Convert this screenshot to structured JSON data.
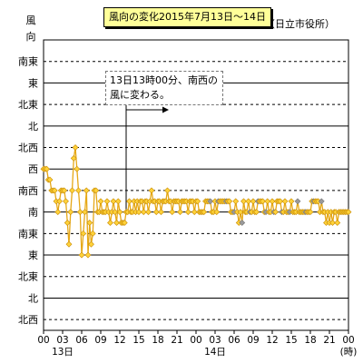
{
  "chart_data": {
    "type": "line",
    "title": "風向の変化2015年7月13日～14日",
    "source": "（日立市役所）",
    "ylabel": "風向",
    "y_categories": [
      "北西",
      "北",
      "北東",
      "東",
      "南東",
      "南",
      "南西",
      "西",
      "北西",
      "北",
      "北東",
      "東",
      "南東"
    ],
    "x_tick_labels": [
      "00",
      "03",
      "06",
      "09",
      "12",
      "15",
      "18",
      "21",
      "00",
      "03",
      "06",
      "09",
      "12",
      "15",
      "18",
      "21",
      "00"
    ],
    "x_day_labels": [
      "13日",
      "14日"
    ],
    "x_unit": "(時)",
    "xlim": [
      0,
      48
    ],
    "annotation": "13日13時00分、南西の風に変わる。",
    "annotation_x": 13,
    "series": [
      {
        "values": [
          [
            0,
            7
          ],
          [
            0.25,
            7
          ],
          [
            0.5,
            7
          ],
          [
            0.75,
            6.5
          ],
          [
            1,
            6.5
          ],
          [
            1.25,
            6
          ],
          [
            1.5,
            6
          ],
          [
            1.75,
            6
          ],
          [
            2,
            5.5
          ],
          [
            2.25,
            5
          ],
          [
            2.5,
            5.5
          ],
          [
            2.75,
            6
          ],
          [
            3,
            6
          ],
          [
            3.25,
            6
          ],
          [
            3.5,
            5.5
          ],
          [
            3.75,
            4.5
          ],
          [
            4,
            3.5
          ],
          [
            4.25,
            5
          ],
          [
            4.5,
            6
          ],
          [
            4.75,
            7.5
          ],
          [
            5,
            8
          ],
          [
            5.25,
            7
          ],
          [
            5.5,
            6
          ],
          [
            5.75,
            5
          ],
          [
            6,
            3
          ],
          [
            6.25,
            4
          ],
          [
            6.5,
            5
          ],
          [
            6.75,
            6
          ],
          [
            7,
            3
          ],
          [
            7.25,
            4.5
          ],
          [
            7.5,
            3.5
          ],
          [
            7.75,
            4
          ],
          [
            8,
            6
          ],
          [
            8.25,
            6
          ],
          [
            8.5,
            5
          ],
          [
            8.75,
            5
          ],
          [
            9,
            5.5
          ],
          [
            9.25,
            5
          ],
          [
            9.5,
            5
          ],
          [
            9.75,
            5
          ],
          [
            10,
            5.5
          ],
          [
            10.25,
            5
          ],
          [
            10.5,
            4.5
          ],
          [
            10.75,
            5
          ],
          [
            11,
            5.5
          ],
          [
            11.25,
            5
          ],
          [
            11.5,
            4.5
          ],
          [
            11.75,
            5.5
          ],
          [
            12,
            5
          ],
          [
            12.25,
            4.5
          ],
          [
            12.5,
            4.5
          ],
          [
            12.75,
            4.5
          ],
          [
            13,
            5
          ],
          [
            13.25,
            5
          ],
          [
            13.5,
            5.5
          ],
          [
            13.75,
            5
          ],
          [
            14,
            5
          ],
          [
            14.25,
            5.5
          ],
          [
            14.5,
            5
          ],
          [
            14.75,
            5.5
          ],
          [
            15,
            5
          ],
          [
            15.25,
            5.5
          ],
          [
            15.5,
            5.5
          ],
          [
            15.75,
            5
          ],
          [
            16,
            5.5
          ],
          [
            16.25,
            5.5
          ],
          [
            16.5,
            5
          ],
          [
            16.75,
            5.5
          ],
          [
            17,
            6
          ],
          [
            17.25,
            5.5
          ],
          [
            17.5,
            5.5
          ],
          [
            17.75,
            5
          ],
          [
            18,
            5.5
          ],
          [
            18.25,
            5.5
          ],
          [
            18.5,
            5
          ],
          [
            18.75,
            5.5
          ],
          [
            19,
            5.5
          ],
          [
            19.25,
            5.5
          ],
          [
            19.5,
            6
          ],
          [
            19.75,
            5.5
          ],
          [
            20,
            5.5
          ],
          [
            20.25,
            5
          ],
          [
            20.5,
            5.5
          ],
          [
            20.75,
            5.5
          ],
          [
            21,
            5.5
          ],
          [
            21.25,
            5.5
          ],
          [
            21.5,
            5
          ],
          [
            21.75,
            5.5
          ],
          [
            22,
            5.5
          ],
          [
            22.25,
            5.5
          ],
          [
            22.5,
            5.5
          ],
          [
            22.75,
            5
          ],
          [
            23,
            5.5
          ],
          [
            23.25,
            5.5
          ],
          [
            23.5,
            5.5
          ],
          [
            23.75,
            5
          ],
          [
            24,
            5.5
          ],
          [
            24.25,
            5.5
          ],
          [
            24.5,
            5
          ],
          [
            24.75,
            5
          ],
          [
            25,
            5
          ],
          [
            25.25,
            5
          ],
          [
            25.5,
            5.5
          ],
          [
            25.75,
            5.5
          ],
          [
            26,
            5.5
          ],
          [
            26.25,
            5.5
          ],
          [
            26.5,
            5
          ],
          [
            26.75,
            5
          ],
          [
            27,
            5.5
          ],
          [
            27.25,
            5
          ],
          [
            27.5,
            5.5
          ],
          [
            27.75,
            5.5
          ],
          [
            28,
            5.5
          ],
          [
            28.25,
            5.5
          ],
          [
            28.5,
            5.5
          ],
          [
            28.75,
            5.5
          ],
          [
            29,
            5.5
          ],
          [
            29.25,
            5.5
          ],
          [
            29.5,
            5
          ],
          [
            29.75,
            5
          ],
          [
            30,
            5
          ],
          [
            30.25,
            5.5
          ],
          [
            30.5,
            5
          ],
          [
            30.75,
            4.5
          ],
          [
            31,
            5
          ],
          [
            31.25,
            4.5
          ],
          [
            31.5,
            5.5
          ],
          [
            31.75,
            5
          ],
          [
            32,
            5
          ],
          [
            32.25,
            5.5
          ],
          [
            32.5,
            5
          ],
          [
            32.75,
            5
          ],
          [
            33,
            5.5
          ],
          [
            33.25,
            5
          ],
          [
            33.5,
            5
          ],
          [
            33.75,
            5.5
          ],
          [
            34,
            5.5
          ],
          [
            34.25,
            5.5
          ],
          [
            34.5,
            5.5
          ],
          [
            34.75,
            5
          ],
          [
            35,
            5
          ],
          [
            35.25,
            5.5
          ],
          [
            35.5,
            5
          ],
          [
            35.75,
            5
          ],
          [
            36,
            5.5
          ],
          [
            36.25,
            5
          ],
          [
            36.5,
            5
          ],
          [
            36.75,
            5.5
          ],
          [
            37,
            5.5
          ],
          [
            37.25,
            5.5
          ],
          [
            37.5,
            5
          ],
          [
            37.75,
            5
          ],
          [
            38,
            5.5
          ],
          [
            38.25,
            5
          ],
          [
            38.5,
            5
          ],
          [
            38.75,
            5
          ],
          [
            39,
            5.5
          ],
          [
            39.25,
            5
          ],
          [
            39.5,
            5
          ],
          [
            39.75,
            5
          ],
          [
            40,
            5.5
          ],
          [
            40.25,
            5
          ],
          [
            40.5,
            5
          ],
          [
            40.75,
            5
          ],
          [
            41,
            5
          ],
          [
            41.25,
            5
          ],
          [
            41.5,
            5
          ],
          [
            41.75,
            5
          ],
          [
            42,
            5
          ],
          [
            42.25,
            5.5
          ],
          [
            42.5,
            5.5
          ],
          [
            42.75,
            5.5
          ],
          [
            43,
            5.5
          ],
          [
            43.25,
            5.5
          ],
          [
            43.5,
            5
          ],
          [
            43.75,
            5.5
          ],
          [
            44,
            5
          ],
          [
            44.25,
            5
          ],
          [
            44.5,
            4.5
          ],
          [
            44.75,
            5
          ],
          [
            45,
            4.5
          ],
          [
            45.25,
            5
          ],
          [
            45.5,
            4.5
          ],
          [
            45.75,
            5
          ],
          [
            46,
            5
          ],
          [
            46.25,
            4.5
          ],
          [
            46.5,
            5
          ],
          [
            46.75,
            5
          ],
          [
            47,
            5
          ],
          [
            47.25,
            5
          ],
          [
            47.5,
            5
          ],
          [
            47.75,
            5
          ],
          [
            48,
            5
          ]
        ]
      }
    ],
    "grid": "horizontal-dashed",
    "colors": {
      "line": "#e6a817",
      "marker": "#ffd23a",
      "grey_marker": "#9a9a9a"
    }
  }
}
